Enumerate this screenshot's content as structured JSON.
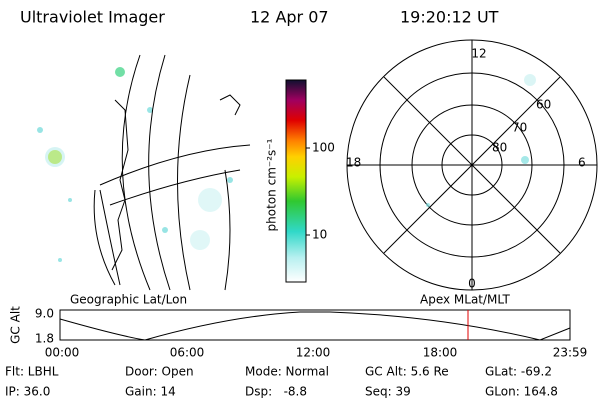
{
  "header": {
    "title": "Ultraviolet Imager",
    "date": "12 Apr 07",
    "time": "19:20:12 UT"
  },
  "colorbar": {
    "label": "photon cm⁻²s⁻¹",
    "ticks": [
      "100",
      "10"
    ]
  },
  "polar": {
    "labels": {
      "top": "12",
      "bottom": "0",
      "left": "18",
      "right": "6"
    },
    "rings": [
      "60",
      "70",
      "80"
    ]
  },
  "panels": {
    "left": "Geographic Lat/Lon",
    "right": "Apex MLat/MLT"
  },
  "altitude": {
    "y_label": "GC Alt",
    "yticks": [
      "9.0",
      "1.8"
    ],
    "xticks": [
      "00:00",
      "06:00",
      "12:00",
      "18:00",
      "23:59"
    ]
  },
  "info": {
    "rows": [
      [
        "Flt: LBHL",
        "Door: Open",
        "Mode: Normal",
        "GC Alt: 5.6 Re",
        "GLat: -69.2"
      ],
      [
        "IP: 36.0",
        "Gain: 14",
        "Dsp:   -8.8",
        "Seq: 39",
        "GLon: 164.8"
      ]
    ]
  }
}
